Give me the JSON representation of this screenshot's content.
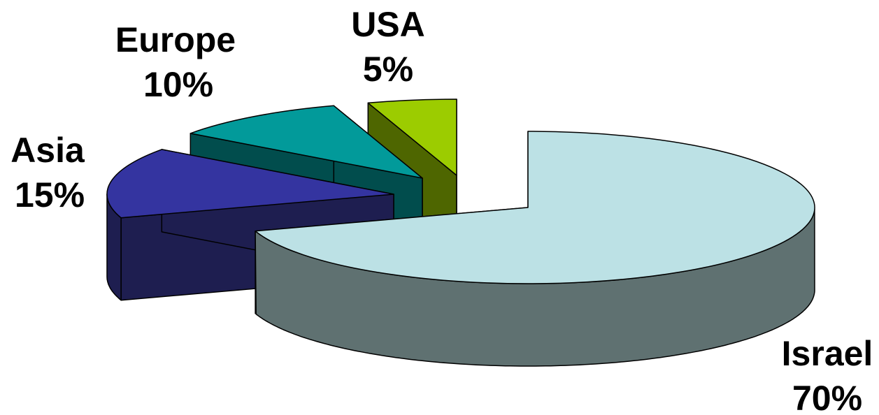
{
  "chart_data": {
    "type": "pie",
    "three_d": true,
    "exploded": true,
    "title": "",
    "legend": "none",
    "slices": [
      {
        "name": "Israel",
        "percent_label": "70%",
        "value": 70,
        "top_color": "#bce1e5",
        "side_color": "#5f7171"
      },
      {
        "name": "Asia",
        "percent_label": "15%",
        "value": 15,
        "top_color": "#3434a0",
        "side_color": "#1e1e50"
      },
      {
        "name": "Europe",
        "percent_label": "10%",
        "value": 10,
        "top_color": "#029a9a",
        "side_color": "#014d4d"
      },
      {
        "name": "USA",
        "percent_label": "5%",
        "value": 5,
        "top_color": "#9ccc00",
        "side_color": "#4e6600"
      }
    ]
  }
}
